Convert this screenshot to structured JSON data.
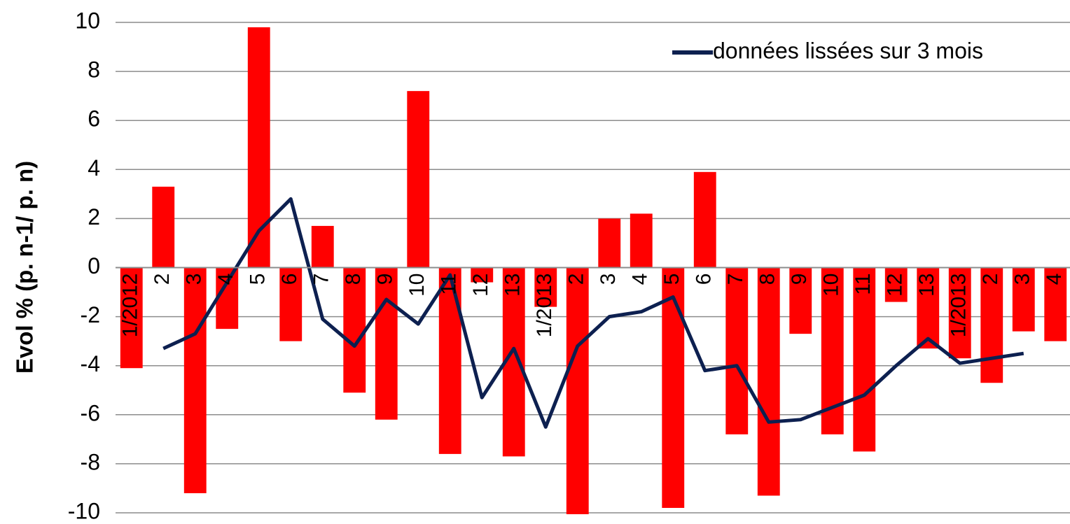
{
  "chart_data": {
    "type": "bar",
    "y_label": "Evol % (p. n-1/ p. n)",
    "categories": [
      "1/2012",
      "2",
      "3",
      "4",
      "5",
      "6",
      "7",
      "8",
      "9",
      "10",
      "11",
      "12",
      "13",
      "1/2013",
      "2",
      "3",
      "4",
      "5",
      "6",
      "7",
      "8",
      "9",
      "10",
      "11",
      "12",
      "13",
      "1/2013",
      "2",
      "3",
      "4"
    ],
    "series": [
      {
        "type": "bar",
        "color": "#ff0000",
        "values": [
          -4.1,
          3.3,
          -9.2,
          -2.5,
          9.8,
          -3.0,
          1.7,
          -5.1,
          -6.2,
          7.2,
          -7.6,
          -0.6,
          -7.7,
          -1.6,
          -10.1,
          2.0,
          2.2,
          -9.8,
          3.9,
          -6.8,
          -9.3,
          -2.7,
          -6.8,
          -7.5,
          -1.4,
          -3.3,
          -3.7,
          -4.7,
          -2.6,
          -3.0
        ]
      },
      {
        "type": "line",
        "name": "données lissées sur 3 mois",
        "color": "#0d2050",
        "values": [
          null,
          -3.3,
          -2.7,
          -0.6,
          1.5,
          2.8,
          -2.1,
          -3.2,
          -1.3,
          -2.3,
          -0.3,
          -5.3,
          -3.3,
          -6.5,
          -3.2,
          -2.0,
          -1.8,
          -1.2,
          -4.2,
          -4.0,
          -6.3,
          -6.2,
          -5.7,
          -5.2,
          -4.0,
          -2.9,
          -3.9,
          -3.7,
          -3.5,
          null
        ]
      }
    ],
    "ylim": [
      -10,
      10
    ],
    "yticks": [
      -10,
      -8,
      -6,
      -4,
      -2,
      0,
      2,
      4,
      6,
      8,
      10
    ],
    "grid": true,
    "legend": "top-right"
  }
}
